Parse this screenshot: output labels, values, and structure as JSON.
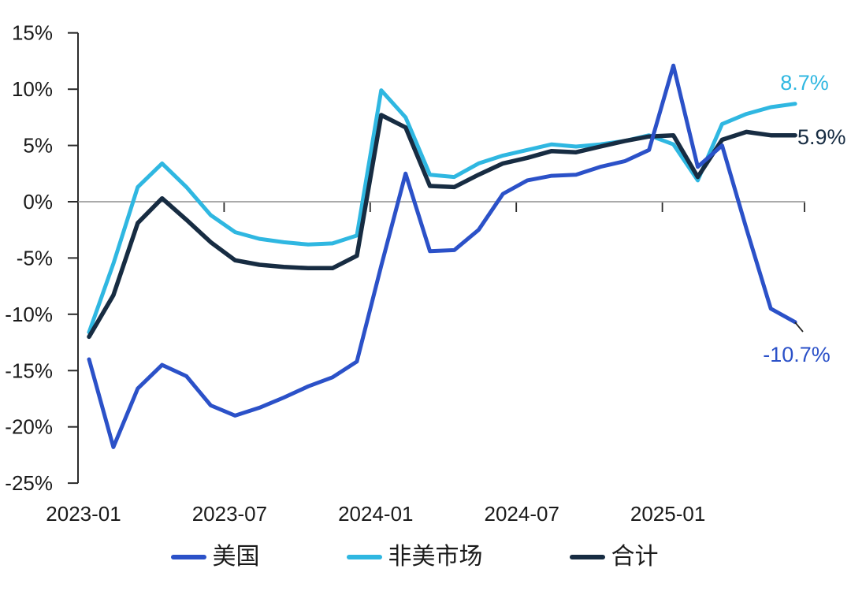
{
  "chart_data": {
    "type": "line",
    "x": [
      "2023-01",
      "2023-02",
      "2023-03",
      "2023-04",
      "2023-05",
      "2023-06",
      "2023-07",
      "2023-08",
      "2023-09",
      "2023-10",
      "2023-11",
      "2023-12",
      "2024-01",
      "2024-02",
      "2024-03",
      "2024-04",
      "2024-05",
      "2024-06",
      "2024-07",
      "2024-08",
      "2024-09",
      "2024-10",
      "2024-11",
      "2024-12",
      "2025-01",
      "2025-02",
      "2025-03",
      "2025-04",
      "2025-05",
      "2025-06"
    ],
    "series": [
      {
        "id": "us",
        "name": "美国",
        "color": "#2B51C8",
        "values": [
          -14.0,
          -21.8,
          -16.6,
          -14.5,
          -15.5,
          -18.1,
          -19.0,
          -18.3,
          -17.4,
          -16.4,
          -15.6,
          -14.2,
          -5.7,
          2.5,
          -4.4,
          -4.3,
          -2.5,
          0.7,
          1.9,
          2.3,
          2.4,
          3.1,
          3.6,
          4.6,
          12.1,
          3.1,
          5.0,
          -2.4,
          -9.5,
          -10.7
        ]
      },
      {
        "id": "non-us",
        "name": "非美市场",
        "color": "#2FB7E1",
        "values": [
          -11.6,
          -5.5,
          1.3,
          3.4,
          1.3,
          -1.2,
          -2.7,
          -3.3,
          -3.6,
          -3.8,
          -3.7,
          -3.0,
          9.9,
          7.5,
          2.4,
          2.2,
          3.4,
          4.1,
          4.6,
          5.1,
          4.9,
          5.1,
          5.4,
          5.9,
          5.1,
          1.9,
          6.9,
          7.8,
          8.4,
          8.7
        ]
      },
      {
        "id": "total",
        "name": "合计",
        "color": "#172C42",
        "values": [
          -12.0,
          -8.3,
          -1.9,
          0.3,
          -1.6,
          -3.6,
          -5.2,
          -5.6,
          -5.8,
          -5.9,
          -5.9,
          -4.8,
          7.7,
          6.6,
          1.4,
          1.3,
          2.4,
          3.4,
          3.9,
          4.5,
          4.4,
          4.9,
          5.4,
          5.8,
          5.9,
          2.2,
          5.5,
          6.2,
          5.9,
          5.9
        ]
      }
    ],
    "ylim": [
      -25,
      15
    ],
    "yticks": [
      15,
      10,
      5,
      0,
      -5,
      -10,
      -15,
      -20,
      -25
    ],
    "ytick_labels": [
      "15%",
      "10%",
      "5%",
      "0%",
      "-5%",
      "-10%",
      "-15%",
      "-20%",
      "-25%"
    ],
    "xtick_labels": [
      "2023-01",
      "2023-07",
      "2024-01",
      "2024-07",
      "2025-01"
    ],
    "xtick_month_indices": [
      0,
      6,
      12,
      18,
      24
    ],
    "grid": "zero-line-only",
    "legend_position": "bottom"
  },
  "annotations": {
    "non_us_end": "8.7%",
    "total_end": "5.9%",
    "us_end": "-10.7%"
  },
  "legend": {
    "items": [
      {
        "label": "美国",
        "color": "#2B51C8"
      },
      {
        "label": "非美市场",
        "color": "#2FB7E1"
      },
      {
        "label": "合计",
        "color": "#172C42"
      }
    ]
  },
  "colors": {
    "background": "#FFFFFF",
    "axis_line": "#2B2B2B",
    "tick_label": "#1A1A1A",
    "zero_line": "#8E8E8E",
    "leader": "#222222"
  }
}
